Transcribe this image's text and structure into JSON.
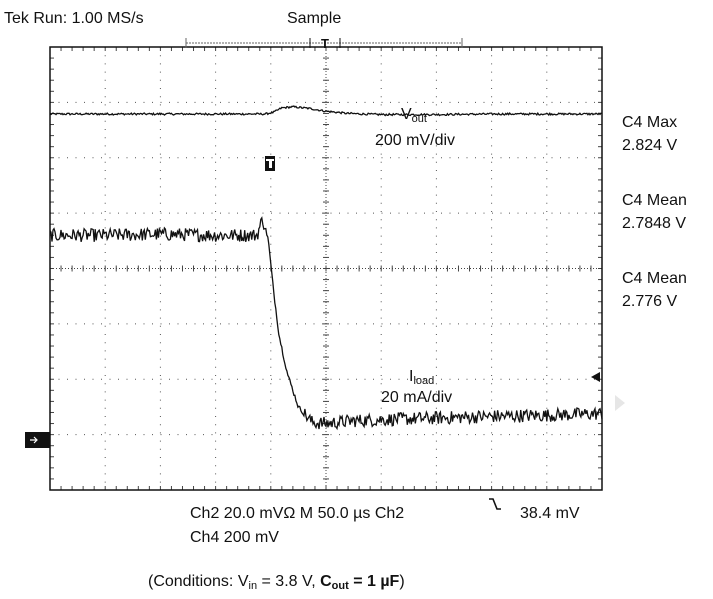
{
  "header": {
    "run_status": "Tek Run: 1.00 MS/s",
    "acquisition_mode": "Sample",
    "trigger_position_marker": "T"
  },
  "measurements": [
    {
      "label": "C4 Max",
      "value": "2.824 V"
    },
    {
      "label": "C4 Mean",
      "value": "2.7848 V"
    },
    {
      "label": "C4 Mean",
      "value": "2.776 V"
    }
  ],
  "traces": {
    "vout": {
      "name_main": "V",
      "name_sub": "out",
      "scale": "200 mV/div"
    },
    "iload": {
      "name_main": "I",
      "name_sub": "load",
      "scale": "20 mA/div"
    }
  },
  "footer": {
    "line1": "Ch2 20.0 mVΩ  M 50.0 µs Ch2",
    "trigger_slope_icon": "falling-edge-icon",
    "trigger_level": "38.4 mV",
    "line2": "Ch4 200 mV"
  },
  "conditions": {
    "prefix": "(Conditions: V",
    "vin_sub": "in",
    "vin_value": " = 3.8 V, ",
    "cout_label": "C",
    "cout_sub": "out",
    "cout_value": " = 1 µF",
    "suffix": ")"
  },
  "chart_data": {
    "type": "line",
    "grid": true,
    "x_divisions": 10,
    "y_divisions": 8,
    "x_unit": "div",
    "y_unit": "div",
    "xlim": [
      0,
      10
    ],
    "ylim": [
      0,
      8
    ],
    "trace_color": "#111111",
    "series": [
      {
        "name": "Vout",
        "x": [
          0,
          1,
          2,
          3,
          3.9,
          4.05,
          4.2,
          4.4,
          4.7,
          5.0,
          5.4,
          6.0,
          7.0,
          8.0,
          9.0,
          10
        ],
        "y": [
          6.79,
          6.79,
          6.79,
          6.79,
          6.79,
          6.82,
          6.9,
          6.92,
          6.89,
          6.84,
          6.8,
          6.78,
          6.78,
          6.79,
          6.79,
          6.79
        ]
      },
      {
        "name": "Iload",
        "x": [
          0,
          1,
          2,
          3,
          3.75,
          3.85,
          3.95,
          4.05,
          4.15,
          4.3,
          4.5,
          4.75,
          5.0,
          5.5,
          6,
          7,
          8,
          9,
          10
        ],
        "y": [
          4.6,
          4.6,
          4.62,
          4.6,
          4.6,
          4.9,
          4.55,
          3.6,
          2.8,
          2.1,
          1.5,
          1.22,
          1.2,
          1.25,
          1.27,
          1.3,
          1.33,
          1.35,
          1.38
        ]
      }
    ]
  }
}
